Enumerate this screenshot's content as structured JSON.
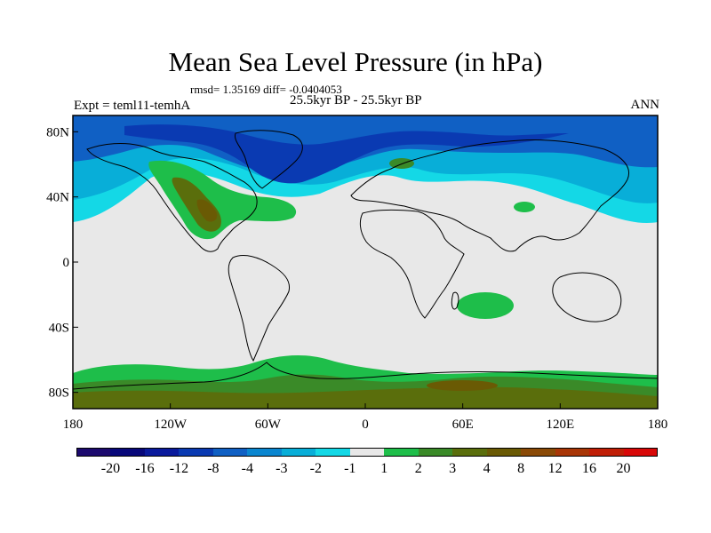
{
  "title": "Mean Sea Level Pressure (in hPa)",
  "stats": "rmsd= 1.35169 diff= -0.0404053",
  "period": "25.5kyr BP - 25.5kyr BP",
  "experiment": "Expt = teml11-temhA",
  "season": "ANN",
  "axes": {
    "lat_ticks": [
      {
        "value": 80,
        "label": "80N"
      },
      {
        "value": 40,
        "label": "40N"
      },
      {
        "value": 0,
        "label": "0"
      },
      {
        "value": -40,
        "label": "40S"
      },
      {
        "value": -80,
        "label": "80S"
      }
    ],
    "lon_ticks": [
      {
        "value": -180,
        "label": "180"
      },
      {
        "value": -120,
        "label": "120W"
      },
      {
        "value": -60,
        "label": "60W"
      },
      {
        "value": 0,
        "label": "0"
      },
      {
        "value": 60,
        "label": "60E"
      },
      {
        "value": 120,
        "label": "120E"
      },
      {
        "value": 180,
        "label": "180"
      }
    ]
  },
  "colorbar": {
    "colors": [
      "#1c0a6e",
      "#08087a",
      "#0a1a9c",
      "#0a3ab2",
      "#1060c4",
      "#0a86d0",
      "#08aed8",
      "#14d8e6",
      "#e8e8e8",
      "#1ebe4a",
      "#3a8a28",
      "#5a6e0c",
      "#6a5a04",
      "#8a4a06",
      "#a83606",
      "#c01e06",
      "#d80808"
    ],
    "labels": [
      "-20",
      "-16",
      "-12",
      "-8",
      "-4",
      "-3",
      "-2",
      "-1",
      "1",
      "2",
      "3",
      "4",
      "8",
      "12",
      "16",
      "20"
    ]
  },
  "colors": {
    "background": "#e8e8e8",
    "neg_deep": "#0a3ab2",
    "neg_mid": "#1060c4",
    "neg_light": "#08aed8",
    "neg_pale": "#14d8e6",
    "pos_green": "#1ebe4a",
    "pos_dark": "#3a8a28",
    "pos_olive": "#5a6e0c",
    "pos_brown": "#6a5a04"
  }
}
